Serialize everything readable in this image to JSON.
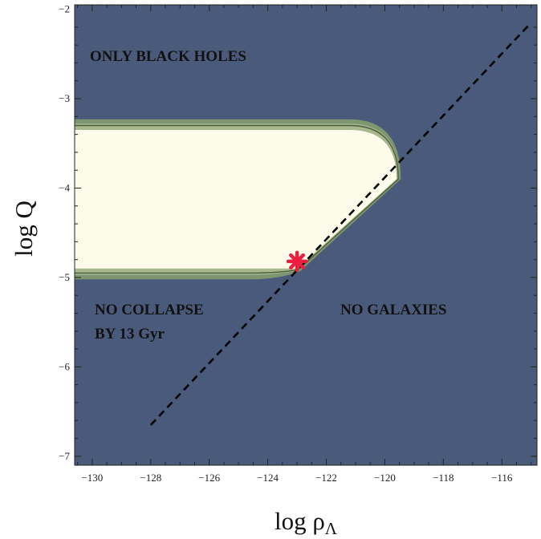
{
  "chart_data": {
    "type": "contour",
    "xlabel_main": "log ρ",
    "xlabel_sub": "Λ",
    "ylabel": "log Q",
    "xlim": [
      -130.6,
      -114.8
    ],
    "ylim": [
      -7.1,
      -1.95
    ],
    "x_ticks": [
      -130,
      -128,
      -126,
      -124,
      -122,
      -120,
      -118,
      -116
    ],
    "x_tick_labels": [
      "−130",
      "−128",
      "−126",
      "−124",
      "−122",
      "−120",
      "−118",
      "−116"
    ],
    "y_ticks": [
      -7,
      -6,
      -5,
      -4,
      -3,
      -2
    ],
    "y_tick_labels": [
      "−7",
      "−6",
      "−5",
      "−4",
      "−3",
      "−2"
    ],
    "grid": false,
    "colors": {
      "background_region": "#4a5a7a",
      "outer_band": "#7e9670",
      "middle_band": "#a7b88f",
      "inner_region": "#fdfcea",
      "band_line": "#4a5e3a",
      "marker": "#ee1c3f",
      "dashed_line": "#000000"
    },
    "regions": [
      {
        "name": "anthropic_window",
        "upper_boundary_logQ": -3.35,
        "lower_boundary_logQ": -4.9,
        "upper_boundary_end_rho": -121.2,
        "corner_rho": -119.6,
        "corner_logQ": -3.9
      }
    ],
    "dashed_line": {
      "x": [
        -128,
        -115
      ],
      "y": [
        -6.65,
        -2.15
      ]
    },
    "marker": {
      "symbol": "asterisk",
      "x": -123,
      "y": -4.82
    },
    "annotations": {
      "top": "ONLY BLACK HOLES",
      "left_line1": "NO COLLAPSE",
      "left_line2": "BY 13 Gyr",
      "right": "NO GALAXIES"
    }
  }
}
